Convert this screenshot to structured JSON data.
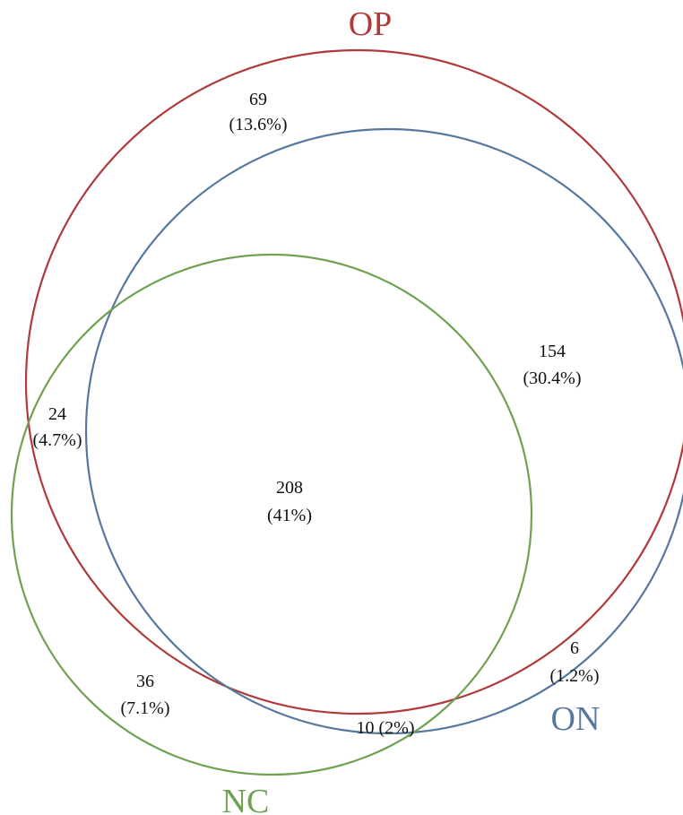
{
  "sets": [
    {
      "id": "op",
      "label": "OP",
      "color": "#b03a3a"
    },
    {
      "id": "on",
      "label": "ON",
      "color": "#56789f"
    },
    {
      "id": "nc",
      "label": "NC",
      "color": "#6fa150"
    }
  ],
  "regions": [
    {
      "id": "op-only",
      "count": "69",
      "percent": "(13.6%)"
    },
    {
      "id": "op-on",
      "count": "154",
      "percent": "(30.4%)"
    },
    {
      "id": "op-nc",
      "count": "24",
      "percent": "(4.7%)"
    },
    {
      "id": "all-three",
      "count": "208",
      "percent": "(41%)"
    },
    {
      "id": "nc-only",
      "count": "36",
      "percent": "(7.1%)"
    },
    {
      "id": "on-only",
      "count": "6",
      "percent": "(1.2%)"
    },
    {
      "id": "on-nc",
      "text": "10 (2%)"
    }
  ]
}
